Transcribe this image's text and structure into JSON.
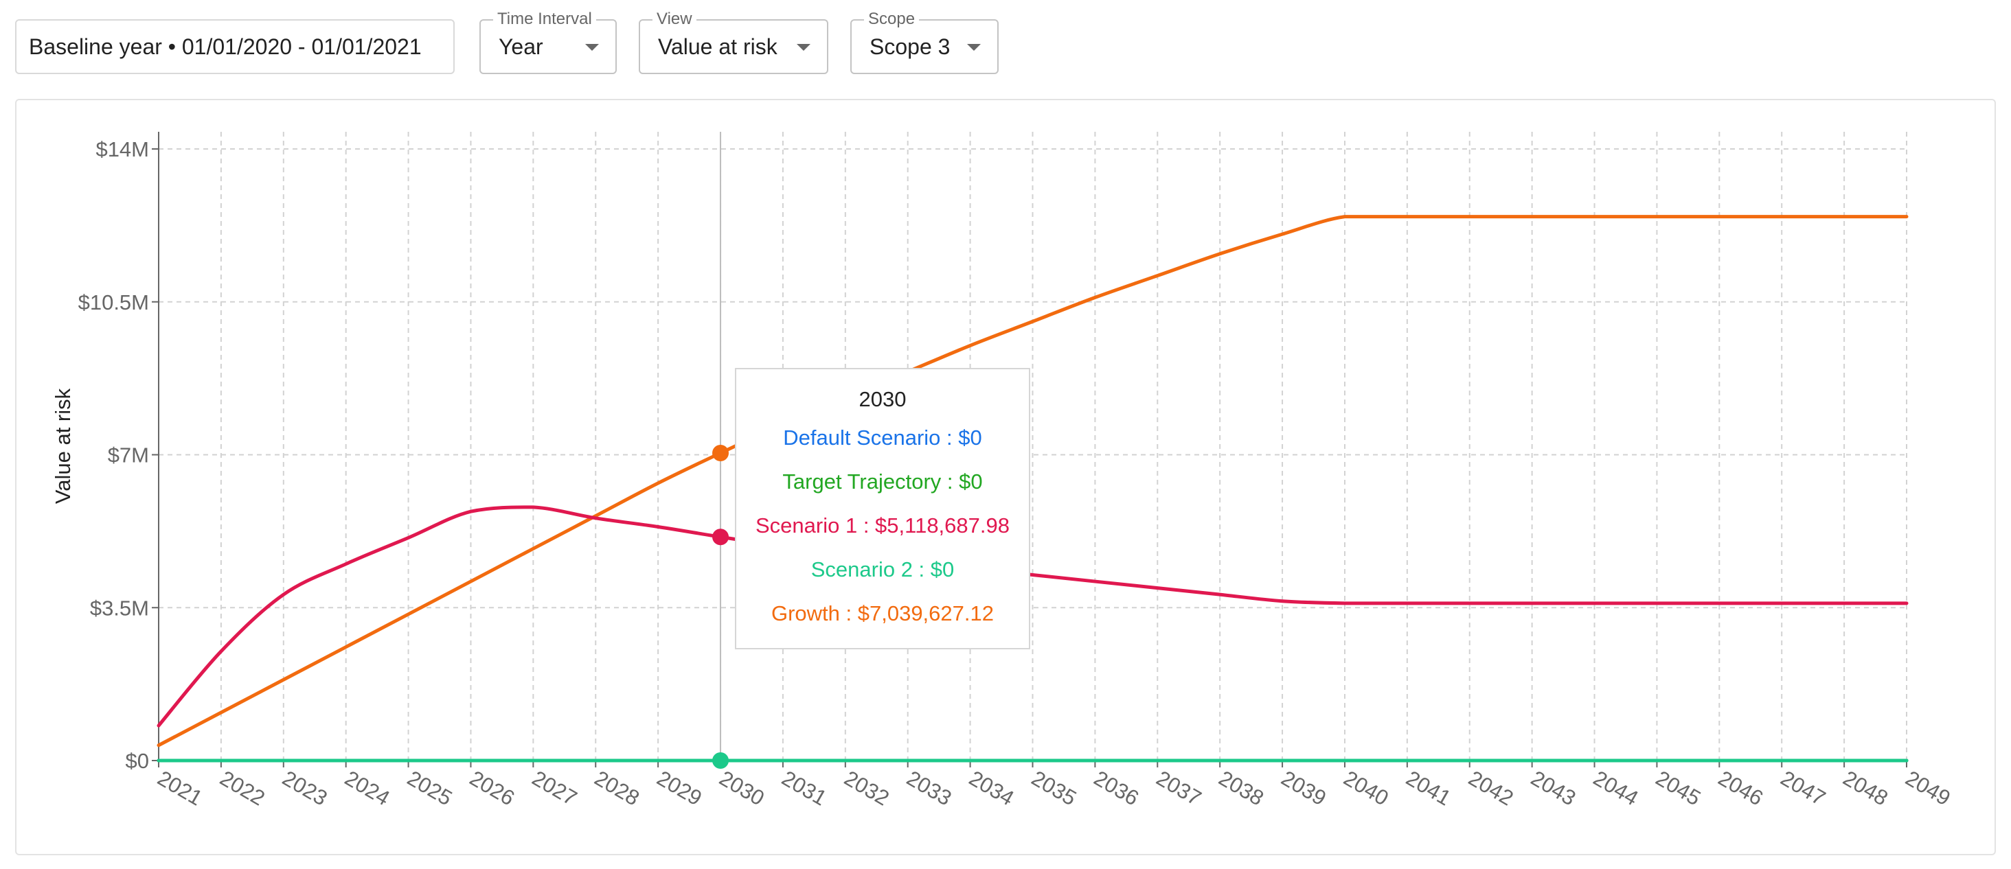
{
  "filters": {
    "baseline": "Baseline year • 01/01/2020 - 01/01/2021",
    "time_interval": {
      "label": "Time Interval",
      "value": "Year"
    },
    "view": {
      "label": "View",
      "value": "Value at risk"
    },
    "scope": {
      "label": "Scope",
      "value": "Scope 3"
    }
  },
  "chart_data": {
    "type": "line",
    "xlabel": "",
    "ylabel": "Value at risk",
    "ylim": [
      0,
      14000000
    ],
    "yticks": [
      0,
      3500000,
      7000000,
      10500000,
      14000000
    ],
    "ytick_labels": [
      "$0",
      "$3.5M",
      "$7M",
      "$10.5M",
      "$14M"
    ],
    "x": [
      2021,
      2022,
      2023,
      2024,
      2025,
      2026,
      2027,
      2028,
      2029,
      2030,
      2031,
      2032,
      2033,
      2034,
      2035,
      2036,
      2037,
      2038,
      2039,
      2040,
      2041,
      2042,
      2043,
      2044,
      2045,
      2046,
      2047,
      2048,
      2049
    ],
    "grid": true,
    "series": [
      {
        "name": "Default Scenario",
        "color": "#1a73e8",
        "values": [
          0,
          0,
          0,
          0,
          0,
          0,
          0,
          0,
          0,
          0,
          0,
          0,
          0,
          0,
          0,
          0,
          0,
          0,
          0,
          0,
          0,
          0,
          0,
          0,
          0,
          0,
          0,
          0,
          0
        ]
      },
      {
        "name": "Target Trajectory",
        "color": "#22a722",
        "values": [
          0,
          0,
          0,
          0,
          0,
          0,
          0,
          0,
          0,
          0,
          0,
          0,
          0,
          0,
          0,
          0,
          0,
          0,
          0,
          0,
          0,
          0,
          0,
          0,
          0,
          0,
          0,
          0,
          0
        ]
      },
      {
        "name": "Scenario 1",
        "color": "#e0184f",
        "values": [
          800000,
          2500000,
          3800000,
          4500000,
          5100000,
          5700000,
          5800000,
          5550000,
          5350000,
          5118687.98,
          4900000,
          4700000,
          4550000,
          4400000,
          4250000,
          4100000,
          3950000,
          3800000,
          3650000,
          3600000,
          3600000,
          3600000,
          3600000,
          3600000,
          3600000,
          3600000,
          3600000,
          3600000,
          3600000
        ]
      },
      {
        "name": "Scenario 2",
        "color": "#1cc98a",
        "values": [
          0,
          0,
          0,
          0,
          0,
          0,
          0,
          0,
          0,
          0,
          0,
          0,
          0,
          0,
          0,
          0,
          0,
          0,
          0,
          0,
          0,
          0,
          0,
          0,
          0,
          0,
          0,
          0,
          0
        ]
      },
      {
        "name": "Growth",
        "color": "#f26b0f",
        "values": [
          350000,
          1100000,
          1850000,
          2600000,
          3350000,
          4100000,
          4850000,
          5600000,
          6350000,
          7039627.12,
          7700000,
          8300000,
          8900000,
          9500000,
          10050000,
          10600000,
          11100000,
          11600000,
          12050000,
          12450000,
          12450000,
          12450000,
          12450000,
          12450000,
          12450000,
          12450000,
          12450000,
          12450000,
          12450000
        ]
      }
    ],
    "tooltip": {
      "title": "2030",
      "rows": [
        "Default Scenario : $0",
        "Target Trajectory : $0",
        "Scenario 1 : $5,118,687.98",
        "Scenario 2 : $0",
        "Growth : $7,039,627.12"
      ]
    }
  }
}
